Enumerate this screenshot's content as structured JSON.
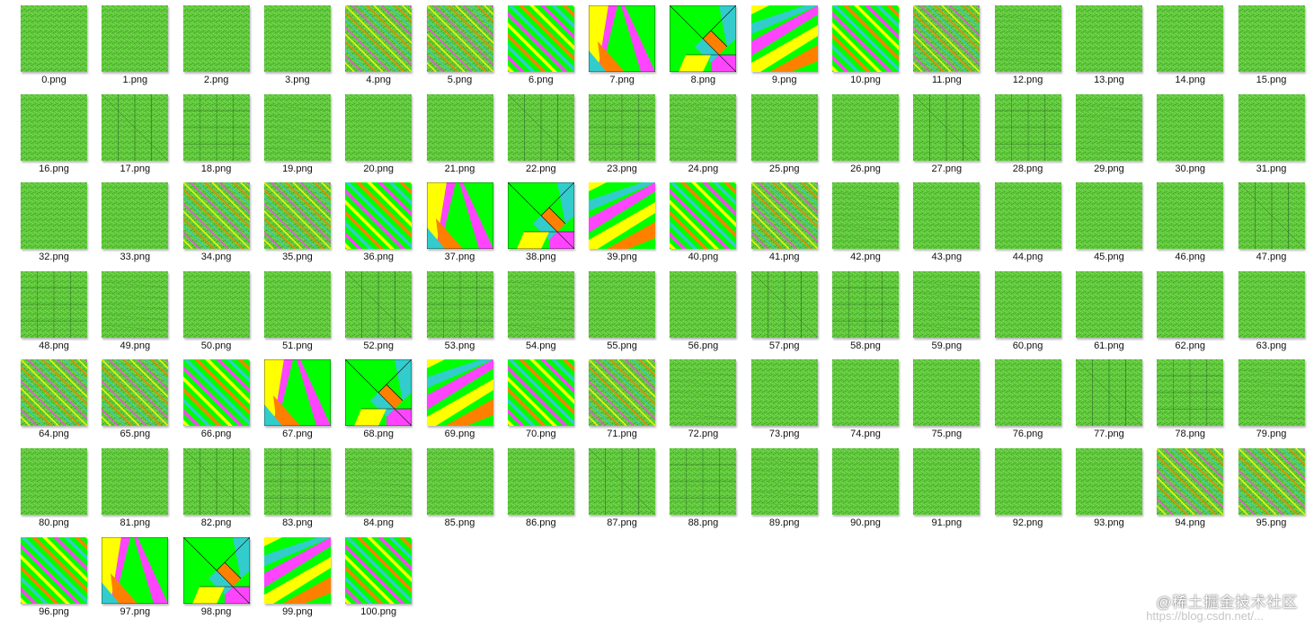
{
  "files": [
    {
      "name": "0.png",
      "pattern": "noise"
    },
    {
      "name": "1.png",
      "pattern": "noise"
    },
    {
      "name": "2.png",
      "pattern": "noise"
    },
    {
      "name": "3.png",
      "pattern": "noise"
    },
    {
      "name": "4.png",
      "pattern": "stripes-thin"
    },
    {
      "name": "5.png",
      "pattern": "stripes-thin"
    },
    {
      "name": "6.png",
      "pattern": "stripes-wide"
    },
    {
      "name": "7.png",
      "pattern": "tangram-skew"
    },
    {
      "name": "8.png",
      "pattern": "tangram"
    },
    {
      "name": "9.png",
      "pattern": "tangram-skew2"
    },
    {
      "name": "10.png",
      "pattern": "stripes-wide"
    },
    {
      "name": "11.png",
      "pattern": "stripes-thin"
    },
    {
      "name": "12.png",
      "pattern": "grid-faint"
    },
    {
      "name": "13.png",
      "pattern": "noise"
    },
    {
      "name": "14.png",
      "pattern": "noise"
    },
    {
      "name": "15.png",
      "pattern": "noise"
    },
    {
      "name": "16.png",
      "pattern": "noise"
    },
    {
      "name": "17.png",
      "pattern": "grid-lines"
    },
    {
      "name": "18.png",
      "pattern": "grid-boxes"
    },
    {
      "name": "19.png",
      "pattern": "grid-faint"
    },
    {
      "name": "20.png",
      "pattern": "noise"
    },
    {
      "name": "21.png",
      "pattern": "noise"
    },
    {
      "name": "22.png",
      "pattern": "grid-lines"
    },
    {
      "name": "23.png",
      "pattern": "grid-boxes"
    },
    {
      "name": "24.png",
      "pattern": "grid-faint"
    },
    {
      "name": "25.png",
      "pattern": "noise"
    },
    {
      "name": "26.png",
      "pattern": "noise"
    },
    {
      "name": "27.png",
      "pattern": "grid-lines"
    },
    {
      "name": "28.png",
      "pattern": "grid-boxes"
    },
    {
      "name": "29.png",
      "pattern": "grid-faint"
    },
    {
      "name": "30.png",
      "pattern": "noise"
    },
    {
      "name": "31.png",
      "pattern": "noise"
    },
    {
      "name": "32.png",
      "pattern": "noise"
    },
    {
      "name": "33.png",
      "pattern": "noise"
    },
    {
      "name": "34.png",
      "pattern": "stripes-thin"
    },
    {
      "name": "35.png",
      "pattern": "stripes-thin"
    },
    {
      "name": "36.png",
      "pattern": "stripes-wide"
    },
    {
      "name": "37.png",
      "pattern": "tangram-skew"
    },
    {
      "name": "38.png",
      "pattern": "tangram"
    },
    {
      "name": "39.png",
      "pattern": "tangram-skew2"
    },
    {
      "name": "40.png",
      "pattern": "stripes-wide"
    },
    {
      "name": "41.png",
      "pattern": "stripes-thin"
    },
    {
      "name": "42.png",
      "pattern": "grid-faint"
    },
    {
      "name": "43.png",
      "pattern": "noise"
    },
    {
      "name": "44.png",
      "pattern": "noise"
    },
    {
      "name": "45.png",
      "pattern": "noise"
    },
    {
      "name": "46.png",
      "pattern": "noise"
    },
    {
      "name": "47.png",
      "pattern": "grid-lines"
    },
    {
      "name": "48.png",
      "pattern": "grid-boxes"
    },
    {
      "name": "49.png",
      "pattern": "grid-faint"
    },
    {
      "name": "50.png",
      "pattern": "noise"
    },
    {
      "name": "51.png",
      "pattern": "noise"
    },
    {
      "name": "52.png",
      "pattern": "grid-lines"
    },
    {
      "name": "53.png",
      "pattern": "grid-boxes"
    },
    {
      "name": "54.png",
      "pattern": "grid-faint"
    },
    {
      "name": "55.png",
      "pattern": "noise"
    },
    {
      "name": "56.png",
      "pattern": "noise"
    },
    {
      "name": "57.png",
      "pattern": "grid-lines"
    },
    {
      "name": "58.png",
      "pattern": "grid-boxes"
    },
    {
      "name": "59.png",
      "pattern": "grid-faint"
    },
    {
      "name": "60.png",
      "pattern": "noise"
    },
    {
      "name": "61.png",
      "pattern": "noise"
    },
    {
      "name": "62.png",
      "pattern": "noise"
    },
    {
      "name": "63.png",
      "pattern": "noise"
    },
    {
      "name": "64.png",
      "pattern": "stripes-thin"
    },
    {
      "name": "65.png",
      "pattern": "stripes-thin"
    },
    {
      "name": "66.png",
      "pattern": "stripes-wide"
    },
    {
      "name": "67.png",
      "pattern": "tangram-skew"
    },
    {
      "name": "68.png",
      "pattern": "tangram"
    },
    {
      "name": "69.png",
      "pattern": "tangram-skew2"
    },
    {
      "name": "70.png",
      "pattern": "stripes-wide"
    },
    {
      "name": "71.png",
      "pattern": "stripes-thin"
    },
    {
      "name": "72.png",
      "pattern": "grid-faint"
    },
    {
      "name": "73.png",
      "pattern": "noise"
    },
    {
      "name": "74.png",
      "pattern": "noise"
    },
    {
      "name": "75.png",
      "pattern": "noise"
    },
    {
      "name": "76.png",
      "pattern": "noise"
    },
    {
      "name": "77.png",
      "pattern": "grid-lines"
    },
    {
      "name": "78.png",
      "pattern": "grid-boxes"
    },
    {
      "name": "79.png",
      "pattern": "grid-faint"
    },
    {
      "name": "80.png",
      "pattern": "noise"
    },
    {
      "name": "81.png",
      "pattern": "noise"
    },
    {
      "name": "82.png",
      "pattern": "grid-lines"
    },
    {
      "name": "83.png",
      "pattern": "grid-boxes"
    },
    {
      "name": "84.png",
      "pattern": "grid-faint"
    },
    {
      "name": "85.png",
      "pattern": "noise"
    },
    {
      "name": "86.png",
      "pattern": "noise"
    },
    {
      "name": "87.png",
      "pattern": "grid-lines"
    },
    {
      "name": "88.png",
      "pattern": "grid-boxes"
    },
    {
      "name": "89.png",
      "pattern": "grid-faint"
    },
    {
      "name": "90.png",
      "pattern": "noise"
    },
    {
      "name": "91.png",
      "pattern": "noise"
    },
    {
      "name": "92.png",
      "pattern": "noise"
    },
    {
      "name": "93.png",
      "pattern": "noise"
    },
    {
      "name": "94.png",
      "pattern": "stripes-thin"
    },
    {
      "name": "95.png",
      "pattern": "stripes-thin"
    },
    {
      "name": "96.png",
      "pattern": "stripes-wide"
    },
    {
      "name": "97.png",
      "pattern": "tangram-skew"
    },
    {
      "name": "98.png",
      "pattern": "tangram"
    },
    {
      "name": "99.png",
      "pattern": "tangram-skew2"
    },
    {
      "name": "100.png",
      "pattern": "stripes-wide"
    }
  ],
  "colors": {
    "green_base": "#5fc93a",
    "green_bright": "#00ff00",
    "noise_dark": "#3f9a2a",
    "noise_light": "#8cd86a",
    "yellow": "#ffff00",
    "magenta": "#ff44ff",
    "orange": "#ff8000",
    "cyan": "#33cccc",
    "line": "#2f6d28"
  },
  "watermark": {
    "text": "@稀土掘金技术社区",
    "url": "https://blog.csdn.net/..."
  }
}
